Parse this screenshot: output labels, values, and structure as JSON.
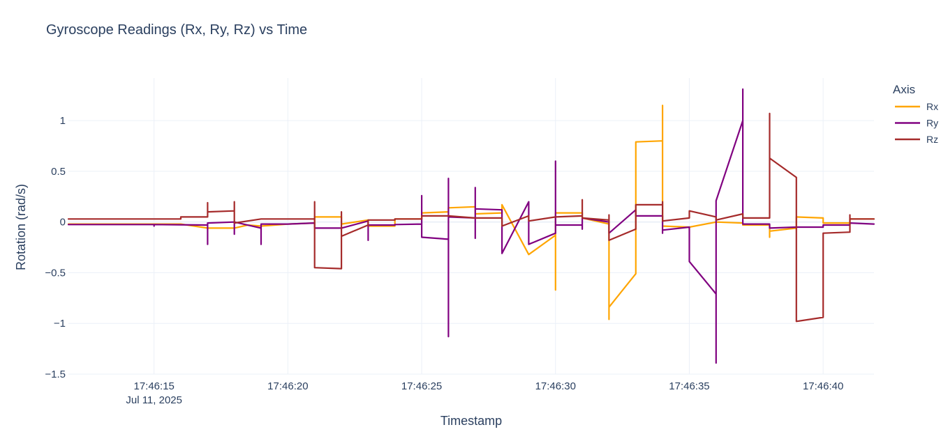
{
  "chart_data": {
    "type": "line",
    "title": "Gyroscope Readings (Rx, Ry, Rz) vs Time",
    "xlabel": "Timestamp",
    "ylabel": "Rotation (rad/s)",
    "x_range_seconds": [
      11.8,
      41.9
    ],
    "ylim": [
      -1.5,
      1.42
    ],
    "x_ticks": [
      {
        "value": 15,
        "label": "17:46:15",
        "sublabel": "Jul 11, 2025"
      },
      {
        "value": 20,
        "label": "17:46:20",
        "sublabel": ""
      },
      {
        "value": 25,
        "label": "17:46:25",
        "sublabel": ""
      },
      {
        "value": 30,
        "label": "17:46:30",
        "sublabel": ""
      },
      {
        "value": 35,
        "label": "17:46:35",
        "sublabel": ""
      },
      {
        "value": 40,
        "label": "17:46:40",
        "sublabel": ""
      }
    ],
    "y_ticks": [
      {
        "value": 1,
        "label": "1"
      },
      {
        "value": 0.5,
        "label": "0.5"
      },
      {
        "value": 0,
        "label": "0"
      },
      {
        "value": -0.5,
        "label": "−0.5"
      },
      {
        "value": -1,
        "label": "−1"
      },
      {
        "value": -1.5,
        "label": "−1.5"
      }
    ],
    "grid": true,
    "legend": {
      "title": "Axis",
      "position": "top-right"
    },
    "series": [
      {
        "name": "Rx",
        "color": "#FFA500",
        "points": [
          [
            11.8,
            -0.02
          ],
          [
            16,
            -0.02
          ],
          [
            17,
            -0.06
          ],
          [
            18,
            -0.06
          ],
          [
            18.5,
            -0.03
          ],
          [
            19,
            -0.04
          ],
          [
            20,
            -0.02
          ],
          [
            21,
            -0.01
          ],
          [
            21,
            0.05
          ],
          [
            22,
            0.05
          ],
          [
            22,
            -0.02
          ],
          [
            23,
            0.02
          ],
          [
            23,
            -0.04
          ],
          [
            24,
            -0.04
          ],
          [
            24,
            0.03
          ],
          [
            25,
            0.03
          ],
          [
            25,
            0.09
          ],
          [
            26,
            0.1
          ],
          [
            26,
            0.14
          ],
          [
            27,
            0.15
          ],
          [
            27,
            0.08
          ],
          [
            28,
            0.09
          ],
          [
            28,
            0.17
          ],
          [
            29,
            -0.32
          ],
          [
            30,
            -0.13
          ],
          [
            30,
            -0.67
          ],
          [
            30,
            0.09
          ],
          [
            31,
            0.09
          ],
          [
            31,
            0.04
          ],
          [
            32,
            -0.02
          ],
          [
            32,
            -0.96
          ],
          [
            32,
            -0.84
          ],
          [
            33,
            -0.51
          ],
          [
            33,
            0.79
          ],
          [
            34,
            0.8
          ],
          [
            34,
            1.15
          ],
          [
            34,
            -0.04
          ],
          [
            35,
            -0.05
          ],
          [
            36,
            0.0
          ],
          [
            37,
            -0.01
          ],
          [
            37,
            -0.03
          ],
          [
            38,
            -0.03
          ],
          [
            38,
            -0.15
          ],
          [
            38,
            -0.09
          ],
          [
            39,
            -0.06
          ],
          [
            39,
            0.05
          ],
          [
            40,
            0.04
          ],
          [
            40,
            -0.01
          ],
          [
            41,
            -0.01
          ],
          [
            41,
            0.03
          ],
          [
            41.9,
            0.03
          ]
        ]
      },
      {
        "name": "Ry",
        "color": "#800080",
        "points": [
          [
            11.8,
            -0.025
          ],
          [
            15,
            -0.025
          ],
          [
            15,
            -0.04
          ],
          [
            15,
            -0.025
          ],
          [
            17,
            -0.03
          ],
          [
            17,
            -0.22
          ],
          [
            17,
            -0.01
          ],
          [
            18,
            0.0
          ],
          [
            18,
            -0.12
          ],
          [
            18,
            0.0
          ],
          [
            19,
            -0.06
          ],
          [
            19,
            -0.22
          ],
          [
            19,
            -0.02
          ],
          [
            20,
            -0.02
          ],
          [
            21,
            -0.01
          ],
          [
            21,
            -0.06
          ],
          [
            22,
            -0.06
          ],
          [
            23,
            0.01
          ],
          [
            23,
            -0.18
          ],
          [
            23,
            -0.03
          ],
          [
            24,
            -0.03
          ],
          [
            24,
            -0.025
          ],
          [
            25,
            -0.02
          ],
          [
            25,
            0.26
          ],
          [
            25,
            -0.15
          ],
          [
            26,
            -0.17
          ],
          [
            26,
            -1.13
          ],
          [
            26,
            0.43
          ],
          [
            26,
            0.05
          ],
          [
            27,
            0.04
          ],
          [
            27,
            -0.16
          ],
          [
            27,
            0.34
          ],
          [
            27,
            0.13
          ],
          [
            28,
            0.12
          ],
          [
            28,
            -0.31
          ],
          [
            29,
            0.2
          ],
          [
            29,
            -0.22
          ],
          [
            30,
            -0.11
          ],
          [
            30,
            0.6
          ],
          [
            30,
            -0.03
          ],
          [
            31,
            -0.03
          ],
          [
            31,
            -0.07
          ],
          [
            31,
            0.04
          ],
          [
            32,
            0.0
          ],
          [
            32,
            -0.11
          ],
          [
            33,
            0.12
          ],
          [
            33,
            0.06
          ],
          [
            34,
            0.06
          ],
          [
            34,
            -0.11
          ],
          [
            34,
            -0.08
          ],
          [
            35,
            -0.05
          ],
          [
            35,
            -0.39
          ],
          [
            36,
            -0.71
          ],
          [
            36,
            -1.39
          ],
          [
            36,
            0.21
          ],
          [
            37,
            1.0
          ],
          [
            37,
            1.31
          ],
          [
            37,
            -0.02
          ],
          [
            38,
            -0.02
          ],
          [
            38,
            -0.06
          ],
          [
            39,
            -0.05
          ],
          [
            40,
            -0.05
          ],
          [
            40,
            -0.03
          ],
          [
            41,
            -0.03
          ],
          [
            41,
            -0.01
          ],
          [
            41.9,
            -0.02
          ]
        ]
      },
      {
        "name": "Rz",
        "color": "#A52A2A",
        "points": [
          [
            11.8,
            0.03
          ],
          [
            16,
            0.03
          ],
          [
            16,
            0.05
          ],
          [
            17,
            0.05
          ],
          [
            17,
            0.19
          ],
          [
            17,
            0.1
          ],
          [
            18,
            0.11
          ],
          [
            18,
            0.2
          ],
          [
            18,
            -0.01
          ],
          [
            19,
            0.03
          ],
          [
            20,
            0.03
          ],
          [
            21,
            0.03
          ],
          [
            21,
            0.2
          ],
          [
            21,
            -0.45
          ],
          [
            22,
            -0.46
          ],
          [
            22,
            0.1
          ],
          [
            22,
            -0.14
          ],
          [
            23,
            -0.03
          ],
          [
            23,
            0.02
          ],
          [
            24,
            0.02
          ],
          [
            24,
            0.03
          ],
          [
            25,
            0.03
          ],
          [
            25,
            0.06
          ],
          [
            26,
            0.06
          ],
          [
            27,
            0.04
          ],
          [
            28,
            0.04
          ],
          [
            28,
            -0.04
          ],
          [
            29,
            0.06
          ],
          [
            29,
            0.01
          ],
          [
            30,
            0.05
          ],
          [
            31,
            0.06
          ],
          [
            31,
            0.22
          ],
          [
            31,
            0.04
          ],
          [
            32,
            0.02
          ],
          [
            32,
            0.07
          ],
          [
            32,
            -0.18
          ],
          [
            33,
            -0.07
          ],
          [
            33,
            0.17
          ],
          [
            34,
            0.17
          ],
          [
            34,
            0.2
          ],
          [
            34,
            0.01
          ],
          [
            35,
            0.04
          ],
          [
            35,
            0.11
          ],
          [
            36,
            0.05
          ],
          [
            36,
            0.02
          ],
          [
            37,
            0.08
          ],
          [
            37,
            0.04
          ],
          [
            38,
            0.04
          ],
          [
            38,
            1.07
          ],
          [
            38,
            0.63
          ],
          [
            39,
            0.44
          ],
          [
            39,
            -0.98
          ],
          [
            40,
            -0.94
          ],
          [
            40,
            -0.11
          ],
          [
            41,
            -0.1
          ],
          [
            41,
            0.07
          ],
          [
            41,
            0.03
          ],
          [
            41.9,
            0.03
          ]
        ]
      }
    ]
  }
}
